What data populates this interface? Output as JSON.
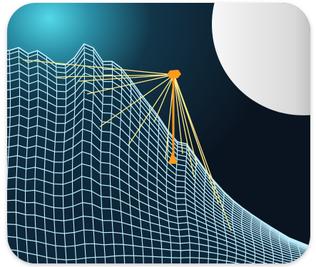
{
  "scene": {
    "subject": "wireframe-terrain-with-probe",
    "colors": {
      "sky_dark": "#0b1624",
      "sky_glow": "#4bd0e4",
      "wire": "#bff0ff",
      "beam": "#ffe98a",
      "probe": "#ff9a1e",
      "moon_light": "#f2f2f2",
      "moon_dark": "#5a5a5a"
    }
  }
}
